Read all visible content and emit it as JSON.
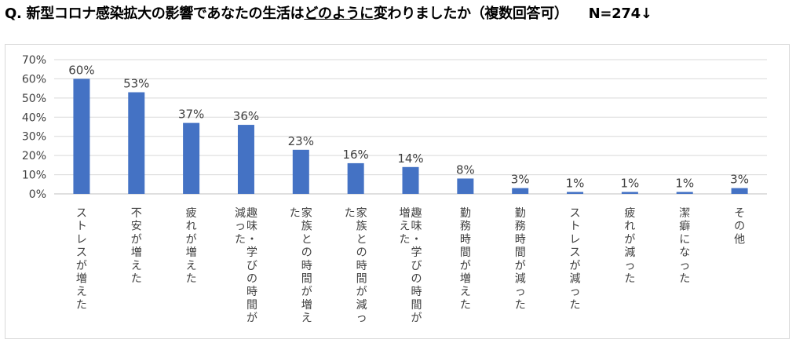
{
  "header": {
    "prefix": "Q. 新型コロナ感染拡大の影響であなたの生活は",
    "underlined": "どのように",
    "suffix": "変わりましたか（複数回答可）",
    "n_label": "N=274↓"
  },
  "colors": {
    "bar": "#4472c4",
    "grid": "#d9d9d9",
    "text": "#404040"
  },
  "chart_data": {
    "type": "bar",
    "categories": [
      "ストレスが増えた",
      "不安が増えた",
      "疲れが増えた",
      "趣味・学びの時間が減った",
      "家族との時間が増えた",
      "家族との時間が減った",
      "趣味・学びの時間が増えた",
      "勤務時間が増えた",
      "勤務時間が減った",
      "ストレスが減った",
      "疲れが減った",
      "潔癖になった",
      "その他"
    ],
    "category_columns": [
      [
        "ストレスが増えた"
      ],
      [
        "不安が増えた"
      ],
      [
        "疲れが増えた"
      ],
      [
        "趣味・学びの時間が",
        "減った"
      ],
      [
        "家族との時間が増え",
        "た"
      ],
      [
        "家族との時間が減っ",
        "た"
      ],
      [
        "趣味・学びの時間が",
        "増えた"
      ],
      [
        "勤務時間が増えた"
      ],
      [
        "勤務時間が減った"
      ],
      [
        "ストレスが減った"
      ],
      [
        "疲れが減った"
      ],
      [
        "潔癖になった"
      ],
      [
        "その他"
      ]
    ],
    "values": [
      60,
      53,
      37,
      36,
      23,
      16,
      14,
      8,
      3,
      1,
      1,
      1,
      3
    ],
    "value_labels": [
      "60%",
      "53%",
      "37%",
      "36%",
      "23%",
      "16%",
      "14%",
      "8%",
      "3%",
      "1%",
      "1%",
      "1%",
      "3%"
    ],
    "y_ticks": [
      "0%",
      "10%",
      "20%",
      "30%",
      "40%",
      "50%",
      "60%",
      "70%"
    ],
    "ylim": [
      0,
      70
    ],
    "grid": true
  }
}
